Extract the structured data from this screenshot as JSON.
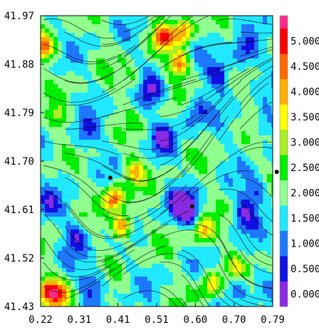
{
  "chart_data": {
    "type": "heatmap",
    "title": "",
    "xlabel": "",
    "ylabel": "",
    "xlim": [
      0.22,
      0.79
    ],
    "ylim": [
      41.43,
      41.97
    ],
    "x_ticks": [
      "0.22",
      "0.31",
      "0.41",
      "0.51",
      "0.60",
      "0.70",
      "0.79"
    ],
    "y_ticks": [
      "41.43",
      "41.52",
      "41.61",
      "41.70",
      "41.79",
      "41.88",
      "41.97"
    ],
    "colorbar": {
      "range": [
        -0.25,
        5.5
      ],
      "ticks": [
        "0.000",
        "0.500",
        "1.000",
        "1.500",
        "2.000",
        "2.500",
        "3.000",
        "3.500",
        "4.000",
        "4.500",
        "5.000"
      ],
      "colors": [
        "#8a2be2",
        "#1010e0",
        "#1e78ff",
        "#20e8ff",
        "#90ff90",
        "#00ee00",
        "#aaee22",
        "#ffff00",
        "#ffb000",
        "#ff6a00",
        "#ff0000",
        "#ff2a8a",
        "#ff30ff"
      ]
    },
    "overlay": "streamlines",
    "markers": [
      {
        "x": 0.391,
        "y": 41.669
      },
      {
        "x": 0.592,
        "y": 41.616
      },
      {
        "x": 0.8,
        "y": 41.68
      }
    ],
    "hotspots": [
      {
        "x": 0.4,
        "y": 41.63,
        "v": 4.7
      },
      {
        "x": 0.42,
        "y": 41.58,
        "v": 4.6
      },
      {
        "x": 0.45,
        "y": 41.68,
        "v": 3.8
      },
      {
        "x": 0.56,
        "y": 41.88,
        "v": 4.5
      },
      {
        "x": 0.52,
        "y": 41.93,
        "v": 4.6
      },
      {
        "x": 0.57,
        "y": 41.94,
        "v": 4.3
      },
      {
        "x": 0.23,
        "y": 41.91,
        "v": 4.2
      },
      {
        "x": 0.24,
        "y": 41.46,
        "v": 4.6
      },
      {
        "x": 0.27,
        "y": 41.45,
        "v": 4.2
      },
      {
        "x": 0.62,
        "y": 41.57,
        "v": 4.0
      },
      {
        "x": 0.64,
        "y": 41.47,
        "v": 3.7
      },
      {
        "x": 0.7,
        "y": 41.5,
        "v": 3.2
      },
      {
        "x": 0.26,
        "y": 41.78,
        "v": 2.8
      },
      {
        "x": 0.45,
        "y": 41.85,
        "v": 2.6
      }
    ],
    "lowspots": [
      {
        "x": 0.58,
        "y": 41.61,
        "v": 0.2
      },
      {
        "x": 0.56,
        "y": 41.62,
        "v": 0.4
      },
      {
        "x": 0.66,
        "y": 41.86,
        "v": 0.3
      },
      {
        "x": 0.72,
        "y": 41.9,
        "v": 0.4
      },
      {
        "x": 0.6,
        "y": 41.79,
        "v": 0.6
      },
      {
        "x": 0.52,
        "y": 41.74,
        "v": 0.5
      },
      {
        "x": 0.49,
        "y": 41.83,
        "v": 0.5
      },
      {
        "x": 0.72,
        "y": 41.6,
        "v": 0.5
      },
      {
        "x": 0.75,
        "y": 41.64,
        "v": 0.6
      },
      {
        "x": 0.7,
        "y": 41.47,
        "v": 0.6
      },
      {
        "x": 0.35,
        "y": 41.47,
        "v": 0.6
      },
      {
        "x": 0.31,
        "y": 41.56,
        "v": 0.5
      },
      {
        "x": 0.33,
        "y": 41.75,
        "v": 0.7
      },
      {
        "x": 0.77,
        "y": 41.77,
        "v": 0.8
      },
      {
        "x": 0.24,
        "y": 41.62,
        "v": 0.8
      }
    ]
  }
}
